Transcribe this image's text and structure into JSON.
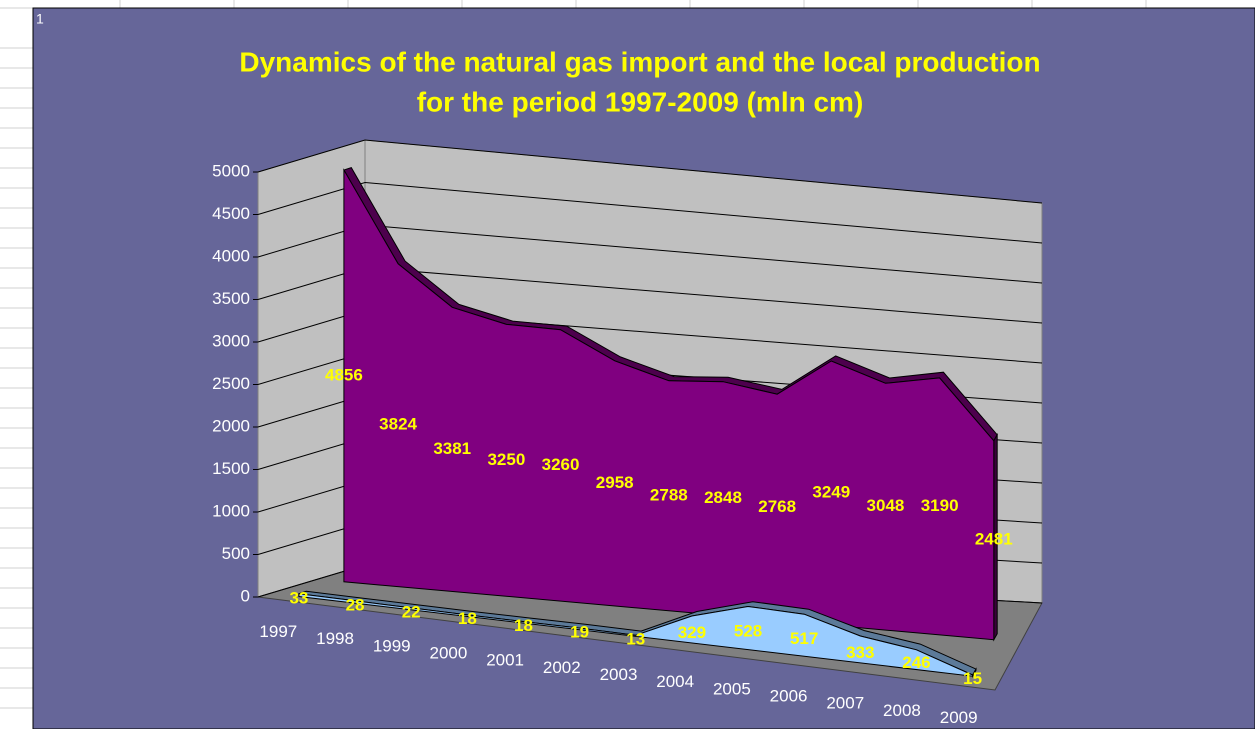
{
  "corner_label": "1",
  "chart_data": {
    "type": "area3d",
    "title": "Dynamics of the natural gas import and the local production",
    "subtitle": "for the period 1997-2009 (mln cm)",
    "categories": [
      "1997",
      "1998",
      "1999",
      "2000",
      "2001",
      "2002",
      "2003",
      "2004",
      "2005",
      "2006",
      "2007",
      "2008",
      "2009"
    ],
    "series": [
      {
        "color": "#800080",
        "values": [
          4856,
          3824,
          3381,
          3250,
          3260,
          2958,
          2788,
          2848,
          2768,
          3249,
          3048,
          3190,
          2481
        ]
      },
      {
        "color": "#99ccff",
        "values": [
          33,
          28,
          22,
          18,
          18,
          19,
          13,
          329,
          528,
          517,
          333,
          246,
          15
        ]
      }
    ],
    "ylim": [
      0,
      5000
    ],
    "yticks": [
      0,
      500,
      1000,
      1500,
      2000,
      2500,
      3000,
      3500,
      4000,
      4500,
      5000
    ],
    "grid": true
  }
}
